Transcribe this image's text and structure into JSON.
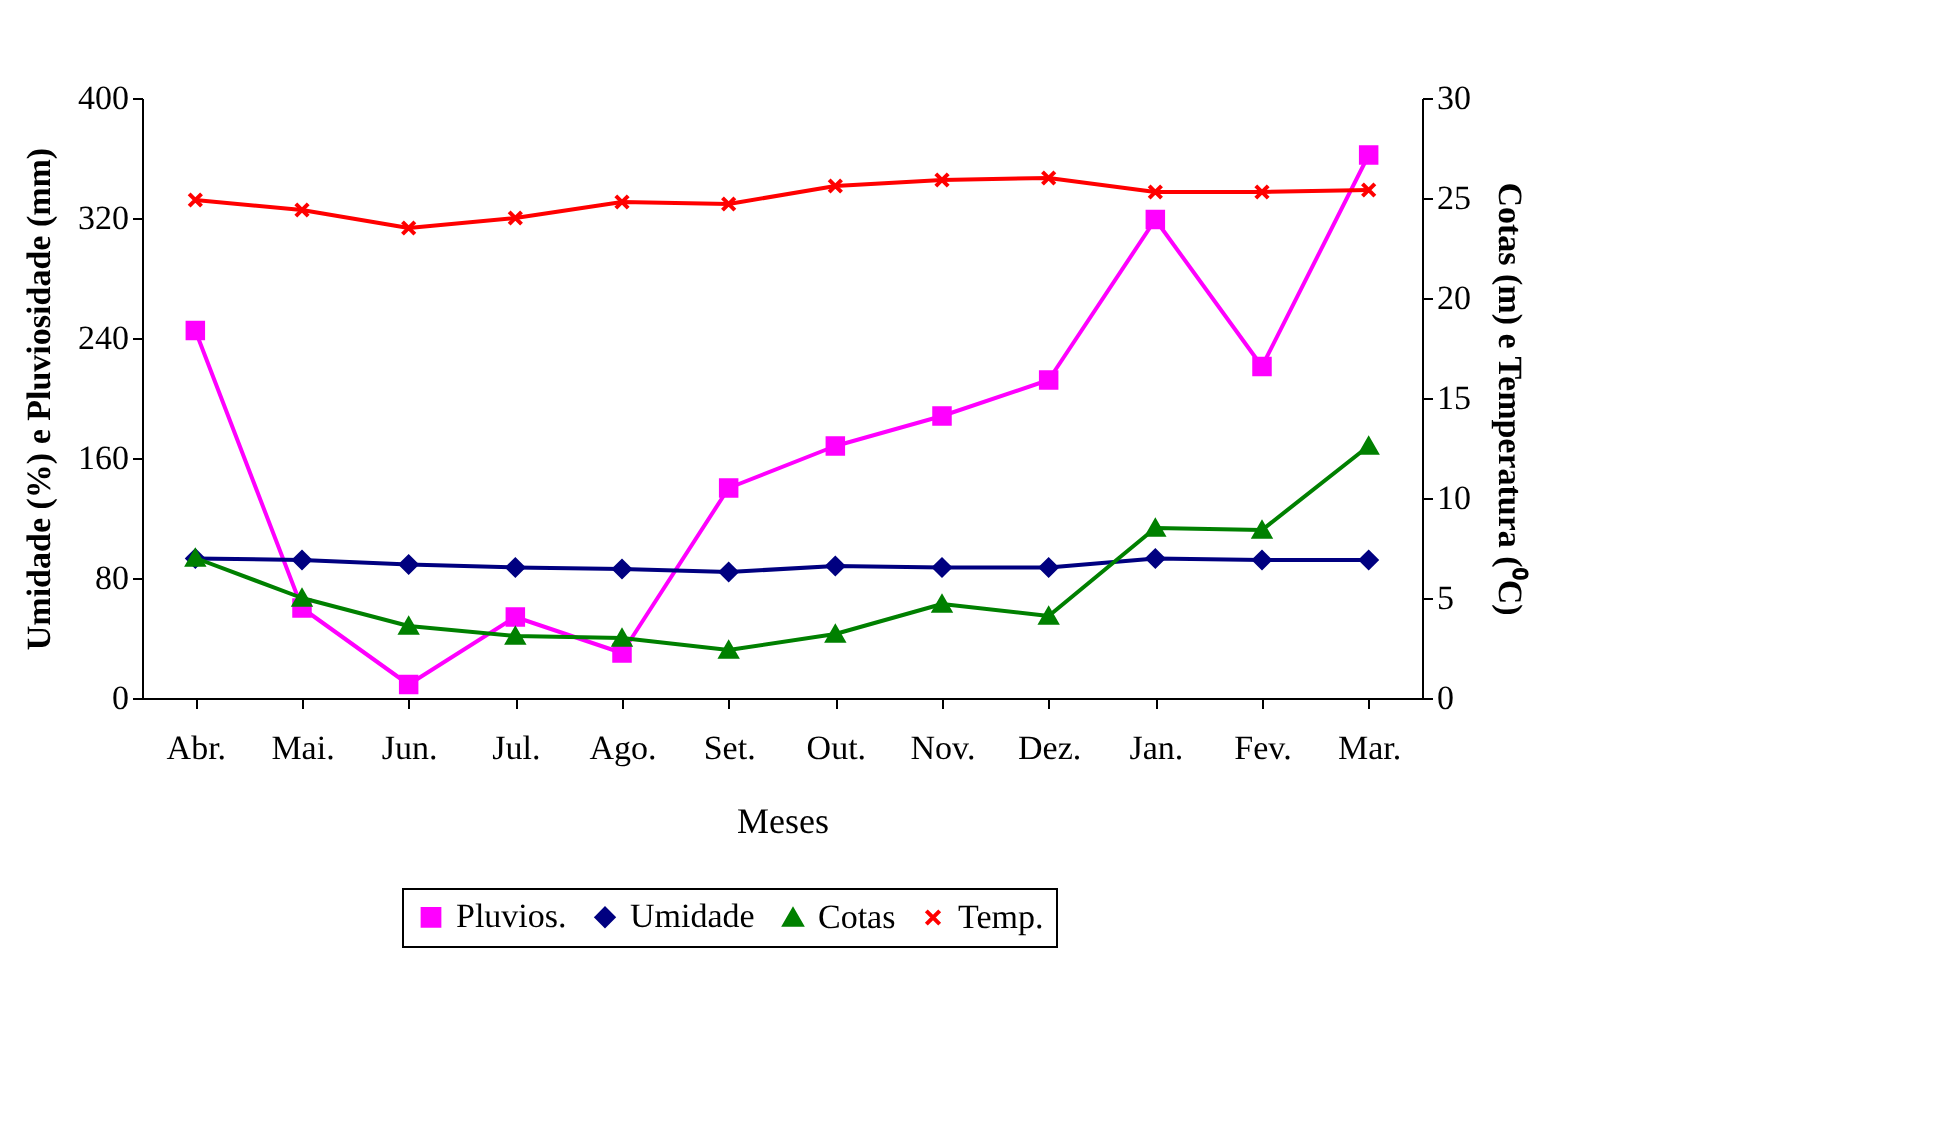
{
  "chart_data": {
    "type": "line",
    "xlabel": "Meses",
    "ylabel": "Umidade (%) e Pluviosidade (mm)",
    "y2label": "Cotas (m) e Temperatura (⁰C)",
    "categories": [
      "Abr.",
      "Mai.",
      "Jun.",
      "Jul.",
      "Ago.",
      "Set.",
      "Out.",
      "Nov.",
      "Dez.",
      "Jan.",
      "Fev.",
      "Mar."
    ],
    "series": [
      {
        "name": "Pluvios.",
        "color": "#ff00ff",
        "marker": "square",
        "values": [
          245,
          60,
          9,
          54,
          30,
          140,
          168,
          188,
          212,
          319,
          221,
          362
        ]
      },
      {
        "name": "Umidade",
        "color": "#000080",
        "marker": "diamond",
        "values": [
          93,
          92,
          89,
          87,
          86,
          84,
          88,
          87,
          87,
          93,
          92,
          92
        ]
      },
      {
        "name": "Cotas",
        "color": "#008000",
        "marker": "triangle",
        "axis": "y2",
        "values": [
          7.0,
          5.0,
          3.6,
          3.1,
          3.0,
          2.4,
          3.2,
          4.7,
          4.1,
          8.5,
          8.4,
          12.6
        ]
      },
      {
        "name": "Temp.",
        "color": "#ff0000",
        "marker": "cross",
        "axis": "y2",
        "values": [
          24.9,
          24.4,
          23.5,
          24.0,
          24.8,
          24.7,
          25.6,
          25.9,
          26.0,
          25.3,
          25.3,
          25.4
        ]
      }
    ],
    "ylim": [
      0,
      400
    ],
    "yticks": [
      0,
      80,
      160,
      240,
      320,
      400
    ],
    "y2lim": [
      0,
      30
    ],
    "y2ticks": [
      0,
      5,
      10,
      15,
      20,
      25,
      30
    ],
    "legend": "bottom",
    "grid": false,
    "line_style": "solid"
  }
}
